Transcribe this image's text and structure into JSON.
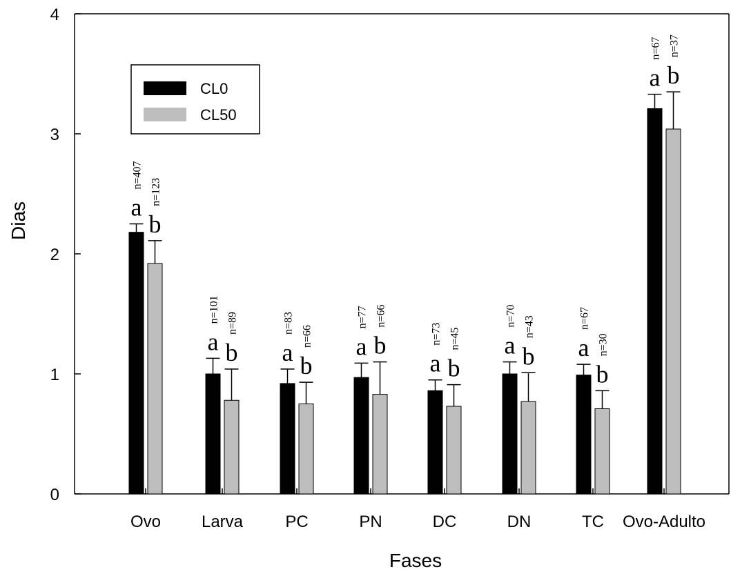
{
  "chart_data": {
    "type": "bar",
    "categories": [
      "Ovo",
      "Larva",
      "PC",
      "PN",
      "DC",
      "DN",
      "TC",
      "Ovo-Adulto"
    ],
    "xlabel": "Fases",
    "ylabel": "Dias",
    "ylim": [
      0,
      4
    ],
    "yticks": [
      "0",
      "1",
      "2",
      "3",
      "4"
    ],
    "grid": false,
    "legend_position": "top-left",
    "series": [
      {
        "name": "CL0",
        "color": "#000000",
        "values": [
          2.18,
          1.0,
          0.92,
          0.97,
          0.86,
          1.0,
          0.99,
          3.21
        ],
        "errors": [
          0.07,
          0.13,
          0.12,
          0.12,
          0.09,
          0.1,
          0.09,
          0.12
        ],
        "letters": [
          "a",
          "a",
          "a",
          "a",
          "a",
          "a",
          "a",
          "a"
        ],
        "n": [
          "n=407",
          "n=101",
          "n=83",
          "n=77",
          "n=73",
          "n=70",
          "n=67",
          "n=67"
        ]
      },
      {
        "name": "CL50",
        "color": "#bdbdbd",
        "values": [
          1.92,
          0.78,
          0.75,
          0.83,
          0.73,
          0.77,
          0.71,
          3.04
        ],
        "errors": [
          0.19,
          0.26,
          0.18,
          0.27,
          0.18,
          0.24,
          0.15,
          0.31
        ],
        "letters": [
          "b",
          "b",
          "b",
          "b",
          "b",
          "b",
          "b",
          "b"
        ],
        "n": [
          "n=123",
          "n=89",
          "n=66",
          "n=66",
          "n=45",
          "n=43",
          "n=30",
          "n=37"
        ]
      }
    ]
  }
}
